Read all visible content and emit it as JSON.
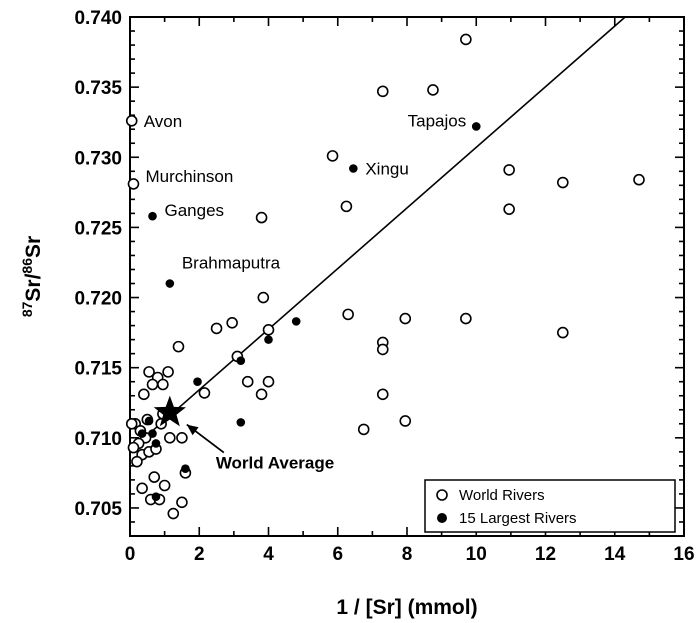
{
  "chart_data": {
    "type": "scatter",
    "xlabel": "1 / [Sr] (mmol)",
    "ylabel": {
      "pre": "87",
      "a": "Sr/",
      "mid": "86",
      "b": "Sr"
    },
    "xlim": [
      0,
      16
    ],
    "ylim": [
      0.703,
      0.74
    ],
    "xticks": [
      "0",
      "2",
      "4",
      "6",
      "8",
      "10",
      "12",
      "14",
      "16"
    ],
    "yticks": [
      "0.705",
      "0.710",
      "0.715",
      "0.720",
      "0.725",
      "0.730",
      "0.735",
      "0.740"
    ],
    "legend": {
      "position": "bottom-right",
      "entries": [
        "World Rivers",
        "15 Largest Rivers"
      ]
    },
    "series": [
      {
        "name": "World Rivers",
        "marker": "open-circle",
        "points": [
          [
            0.05,
            0.7326
          ],
          [
            0.1,
            0.7281
          ],
          [
            9.7,
            0.7384
          ],
          [
            7.3,
            0.7347
          ],
          [
            8.75,
            0.7348
          ],
          [
            5.85,
            0.7301
          ],
          [
            6.25,
            0.7265
          ],
          [
            3.8,
            0.7257
          ],
          [
            10.95,
            0.7291
          ],
          [
            12.5,
            0.7282
          ],
          [
            14.7,
            0.7284
          ],
          [
            10.95,
            0.7263
          ],
          [
            3.85,
            0.72
          ],
          [
            4.0,
            0.7177
          ],
          [
            2.5,
            0.7178
          ],
          [
            2.95,
            0.7182
          ],
          [
            6.3,
            0.7188
          ],
          [
            7.95,
            0.7185
          ],
          [
            9.7,
            0.7185
          ],
          [
            12.5,
            0.7175
          ],
          [
            7.3,
            0.7168
          ],
          [
            7.3,
            0.7163
          ],
          [
            1.4,
            0.7165
          ],
          [
            3.1,
            0.7158
          ],
          [
            2.15,
            0.7132
          ],
          [
            3.4,
            0.714
          ],
          [
            3.8,
            0.7131
          ],
          [
            4.0,
            0.714
          ],
          [
            7.3,
            0.7131
          ],
          [
            6.75,
            0.7106
          ],
          [
            7.95,
            0.7112
          ],
          [
            0.55,
            0.7147
          ],
          [
            0.8,
            0.7143
          ],
          [
            1.1,
            0.7147
          ],
          [
            0.4,
            0.7131
          ],
          [
            0.65,
            0.7138
          ],
          [
            0.95,
            0.7138
          ],
          [
            0.15,
            0.711
          ],
          [
            0.3,
            0.7105
          ],
          [
            0.45,
            0.71
          ],
          [
            0.25,
            0.7096
          ],
          [
            0.1,
            0.7093
          ],
          [
            0.35,
            0.7088
          ],
          [
            0.2,
            0.7083
          ],
          [
            0.55,
            0.709
          ],
          [
            0.75,
            0.7092
          ],
          [
            0.5,
            0.7113
          ],
          [
            0.9,
            0.711
          ],
          [
            0.95,
            0.7117
          ],
          [
            1.15,
            0.71
          ],
          [
            1.5,
            0.71
          ],
          [
            0.7,
            0.7072
          ],
          [
            1.0,
            0.7066
          ],
          [
            0.35,
            0.7064
          ],
          [
            0.6,
            0.7056
          ],
          [
            0.85,
            0.7056
          ],
          [
            1.25,
            0.7046
          ],
          [
            1.5,
            0.7054
          ],
          [
            1.6,
            0.7075
          ],
          [
            0.05,
            0.711
          ]
        ]
      },
      {
        "name": "15 Largest Rivers",
        "marker": "filled-circle",
        "points": [
          [
            10.0,
            0.7322
          ],
          [
            6.45,
            0.7292
          ],
          [
            0.65,
            0.7258
          ],
          [
            1.15,
            0.721
          ],
          [
            4.8,
            0.7183
          ],
          [
            4.0,
            0.717
          ],
          [
            3.2,
            0.7155
          ],
          [
            1.95,
            0.714
          ],
          [
            3.2,
            0.7111
          ],
          [
            1.6,
            0.7078
          ],
          [
            0.75,
            0.7058
          ],
          [
            0.35,
            0.7103
          ],
          [
            0.65,
            0.7103
          ],
          [
            0.75,
            0.7096
          ],
          [
            0.55,
            0.7112
          ]
        ]
      }
    ],
    "trend_line": [
      [
        0,
        0.7091
      ],
      [
        14.3,
        0.74
      ]
    ],
    "world_average": {
      "x": 1.15,
      "y": 0.7118,
      "marker": "star"
    },
    "annotations": [
      {
        "text": "Avon",
        "x": 0.05,
        "y": 0.7326
      },
      {
        "text": "Murchinson",
        "x": 0.1,
        "y": 0.7281
      },
      {
        "text": "Ganges",
        "x": 0.65,
        "y": 0.7258
      },
      {
        "text": "Brahmaputra",
        "x": 1.15,
        "y": 0.721
      },
      {
        "text": "Tapajos",
        "x": 10.0,
        "y": 0.7322
      },
      {
        "text": "Xingu",
        "x": 6.45,
        "y": 0.7292
      },
      {
        "text": "World Average",
        "x": 1.15,
        "y": 0.7118
      }
    ]
  }
}
